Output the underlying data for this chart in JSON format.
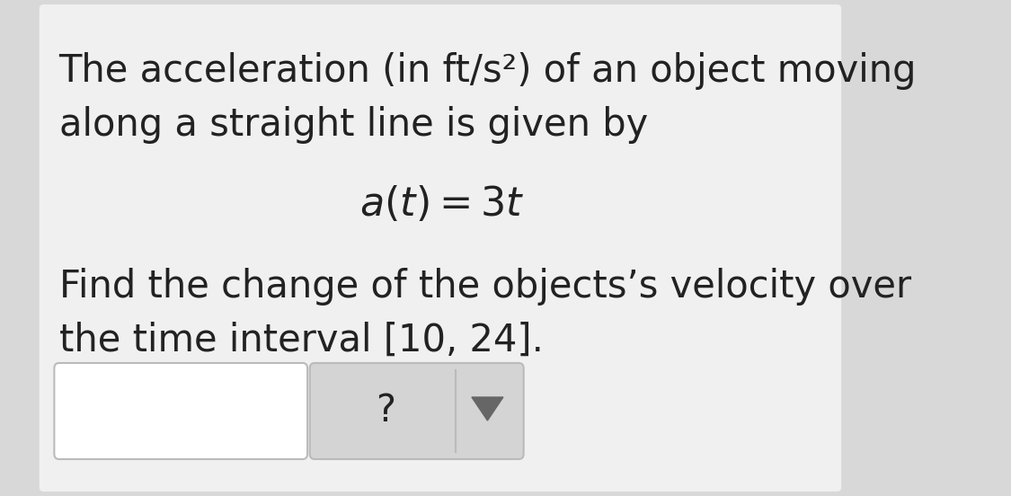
{
  "bg_color": "#d8d8d8",
  "card_color": "#f0f0f0",
  "text_color": "#222222",
  "line1": "The acceleration (in ft/s²) of an object moving",
  "line2": "along a straight line is given by",
  "formula": "$a(t) = 3t$",
  "line3": "Find the change of the objects’s velocity over",
  "line4": "the time interval [10, 24].",
  "input_box_color": "#ffffff",
  "input_box_border": "#bbbbbb",
  "dropdown_color": "#d4d4d4",
  "dropdown_border": "#bbbbbb",
  "arrow_box_color": "#c8c8c8",
  "question_mark": "?",
  "arrow_color": "#666666",
  "main_fontsize": 30,
  "formula_fontsize": 32
}
